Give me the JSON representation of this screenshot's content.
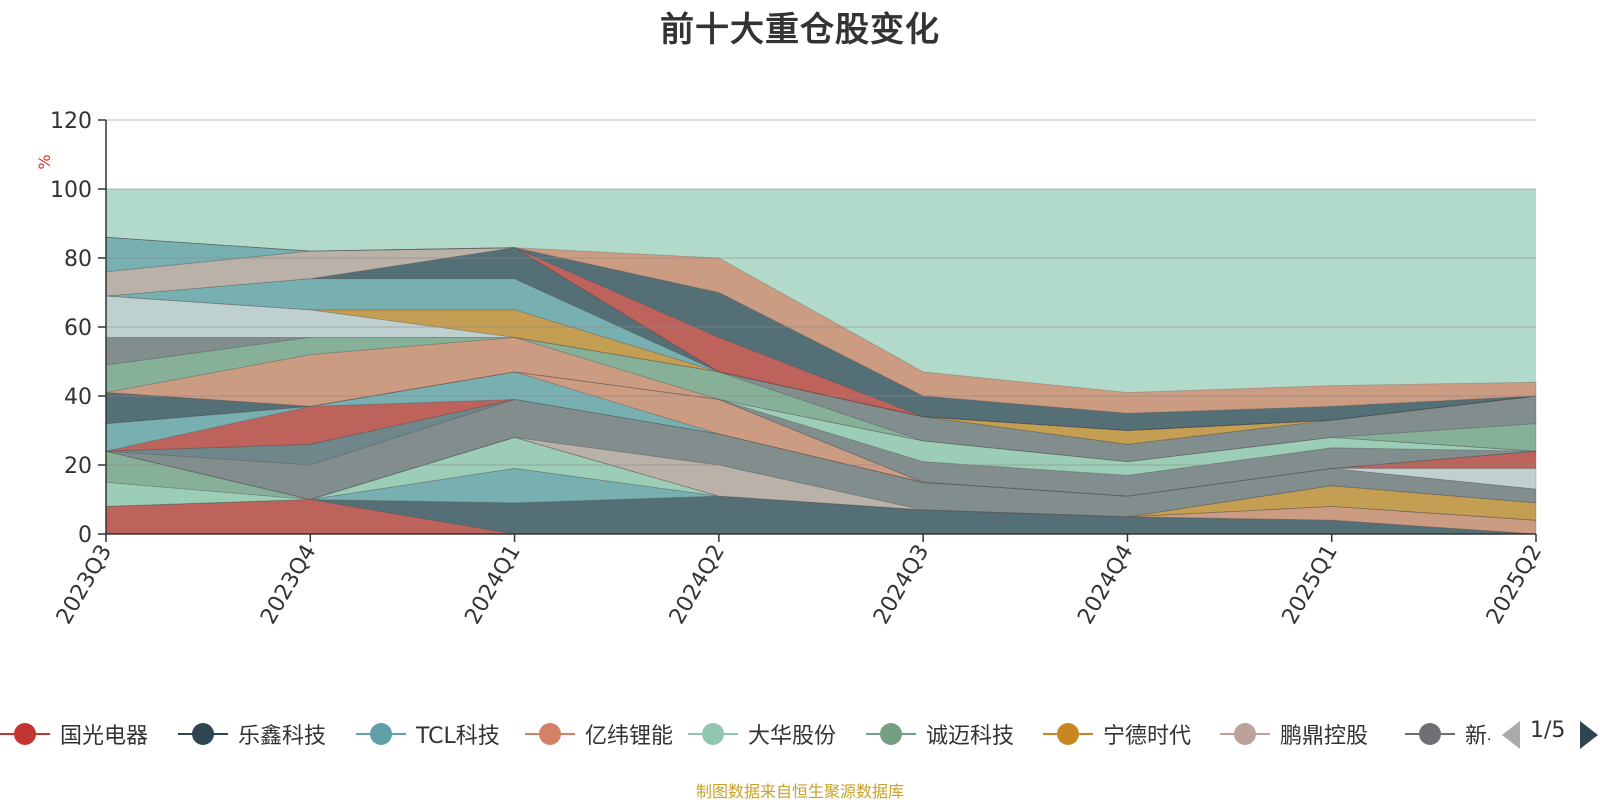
{
  "chart_data": {
    "type": "area",
    "title": "前十大重仓股变化",
    "ylabel": "%",
    "ylim": [
      0,
      120
    ],
    "yticks": [
      0,
      20,
      40,
      60,
      80,
      100,
      120
    ],
    "grid": true,
    "x": [
      "2023Q3",
      "2023Q4",
      "2024Q1",
      "2024Q2",
      "2024Q3",
      "2024Q4",
      "2025Q1",
      "2025Q2"
    ],
    "background_band": {
      "from": 0,
      "to": 100,
      "color": "#b2dacb"
    },
    "series": [
      {
        "name": "国光电器",
        "color": "#c23531",
        "values": [
          8,
          10,
          0,
          0,
          0,
          0,
          0,
          0
        ]
      },
      {
        "name": "乐鑫科技",
        "color": "#2f4554",
        "values": [
          0,
          0,
          9,
          11,
          7,
          5,
          4,
          0
        ]
      },
      {
        "name": "TCL科技",
        "color": "#61a0a8",
        "values": [
          0,
          0,
          10,
          0,
          0,
          0,
          0,
          0
        ]
      },
      {
        "name": "亿纬锂能",
        "color": "#d48265",
        "values": [
          0,
          0,
          0,
          0,
          0,
          0,
          4,
          4
        ]
      },
      {
        "name": "大华股份",
        "color": "#91c7ae",
        "values": [
          7,
          0,
          9,
          0,
          0,
          0,
          0,
          0
        ]
      },
      {
        "name": "诚迈科技",
        "color": "#749f83",
        "values": [
          9,
          0,
          0,
          0,
          0,
          0,
          0,
          0
        ]
      },
      {
        "name": "宁德时代",
        "color": "#ca8622",
        "values": [
          0,
          0,
          0,
          0,
          0,
          0,
          6,
          5
        ]
      },
      {
        "name": "鹏鼎控股",
        "color": "#bda29a",
        "values": [
          0,
          0,
          0,
          9,
          0,
          0,
          0,
          0
        ]
      },
      {
        "name": "新易盛",
        "color": "#6e7074",
        "values": [
          0,
          10,
          11,
          9,
          8,
          6,
          5,
          4
        ]
      },
      {
        "name": "",
        "color": "#546570",
        "values": [
          0,
          6,
          0,
          0,
          0,
          0,
          0,
          0
        ]
      },
      {
        "name": "",
        "color": "#c4ccd3",
        "values": [
          0,
          0,
          0,
          0,
          0,
          0,
          0,
          6
        ]
      },
      {
        "name": "",
        "color": "#c23531",
        "values": [
          0,
          11,
          0,
          0,
          0,
          0,
          0,
          5
        ]
      },
      {
        "name": "",
        "color": "#61a0a8",
        "values": [
          8,
          0,
          8,
          0,
          0,
          0,
          0,
          0
        ]
      },
      {
        "name": "",
        "color": "#d48265",
        "values": [
          0,
          0,
          0,
          10,
          0,
          0,
          0,
          0
        ]
      },
      {
        "name": "",
        "color": "#2f4554",
        "values": [
          9,
          0,
          0,
          0,
          0,
          0,
          0,
          0
        ]
      },
      {
        "name": "",
        "color": "#6e7074",
        "values": [
          0,
          0,
          0,
          0,
          6,
          6,
          6,
          0
        ]
      },
      {
        "name": "",
        "color": "#91c7ae",
        "values": [
          0,
          0,
          0,
          0,
          6,
          4,
          3,
          0
        ]
      },
      {
        "name": "",
        "color": "#d48265",
        "values": [
          0,
          15,
          10,
          0,
          0,
          0,
          0,
          0
        ]
      },
      {
        "name": "",
        "color": "#749f83",
        "values": [
          8,
          5,
          0,
          8,
          0,
          0,
          0,
          8
        ]
      },
      {
        "name": "",
        "color": "#6e7074",
        "values": [
          8,
          0,
          0,
          0,
          7,
          5,
          5,
          8
        ]
      },
      {
        "name": "",
        "color": "#c4ccd3",
        "values": [
          12,
          8,
          0,
          0,
          0,
          0,
          0,
          0
        ]
      },
      {
        "name": "",
        "color": "#ca8622",
        "values": [
          0,
          0,
          8,
          0,
          0,
          4,
          0,
          0
        ]
      },
      {
        "name": "",
        "color": "#61a0a8",
        "values": [
          0,
          9,
          9,
          0,
          0,
          0,
          0,
          0
        ]
      },
      {
        "name": "",
        "color": "#2f4554",
        "values": [
          0,
          0,
          9,
          0,
          0,
          0,
          0,
          0
        ]
      },
      {
        "name": "",
        "color": "#bda29a",
        "values": [
          7,
          8,
          0,
          0,
          0,
          0,
          0,
          0
        ]
      },
      {
        "name": "",
        "color": "#61a0a8",
        "values": [
          10,
          0,
          0,
          0,
          0,
          0,
          0,
          0
        ]
      },
      {
        "name": "",
        "color": "#c23531",
        "values": [
          0,
          0,
          0,
          10,
          0,
          0,
          0,
          0
        ]
      },
      {
        "name": "",
        "color": "#2f4554",
        "values": [
          0,
          0,
          0,
          13,
          6,
          5,
          4,
          0
        ]
      },
      {
        "name": "",
        "color": "#d48265",
        "values": [
          0,
          0,
          0,
          10,
          7,
          6,
          6,
          4
        ]
      }
    ]
  },
  "legend": {
    "items": [
      {
        "label": "国光电器",
        "color": "#c23531"
      },
      {
        "label": "乐鑫科技",
        "color": "#2f4554"
      },
      {
        "label": "TCL科技",
        "color": "#61a0a8"
      },
      {
        "label": "亿纬锂能",
        "color": "#d48265"
      },
      {
        "label": "大华股份",
        "color": "#91c7ae"
      },
      {
        "label": "诚迈科技",
        "color": "#749f83"
      },
      {
        "label": "宁德时代",
        "color": "#ca8622"
      },
      {
        "label": "鹏鼎控股",
        "color": "#bda29a"
      },
      {
        "label": "新易盛",
        "color": "#6e7074"
      }
    ],
    "pager": {
      "text": "1/5"
    }
  },
  "footer": {
    "note": "制图数据来自恒生聚源数据库"
  }
}
